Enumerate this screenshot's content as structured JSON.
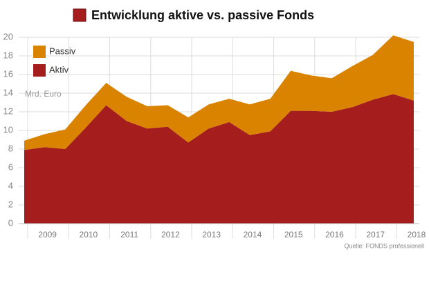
{
  "chart_data": {
    "type": "stacked_area",
    "title": "Entwicklung aktive vs. passive Fonds",
    "y_label": "Mrd. Euro",
    "source": "Quelle: FONDS professionell",
    "categories": [
      null,
      "2009",
      null,
      "2010",
      null,
      "2011",
      null,
      "2012",
      null,
      "2013",
      null,
      "2014",
      null,
      "2015",
      null,
      "2016",
      null,
      "2017",
      null,
      "2018"
    ],
    "series": [
      {
        "name": "Aktiv",
        "color": "#a51d1d",
        "values": [
          7.9,
          8.2,
          8.0,
          10.3,
          12.7,
          11.0,
          10.2,
          10.4,
          8.7,
          10.2,
          10.9,
          9.5,
          9.9,
          12.1,
          12.1,
          12.0,
          12.5,
          13.3,
          13.9,
          13.2
        ]
      },
      {
        "name": "Passiv",
        "color": "#d98300",
        "values": [
          1.0,
          1.4,
          2.1,
          2.4,
          2.4,
          2.6,
          2.4,
          2.3,
          2.7,
          2.6,
          2.5,
          3.3,
          3.5,
          4.3,
          3.8,
          3.6,
          4.4,
          4.8,
          6.3,
          6.3
        ]
      }
    ],
    "ylim": [
      0,
      20
    ],
    "yticks": [
      0,
      2,
      4,
      6,
      8,
      10,
      12,
      14,
      16,
      18,
      20
    ],
    "grid": true
  }
}
